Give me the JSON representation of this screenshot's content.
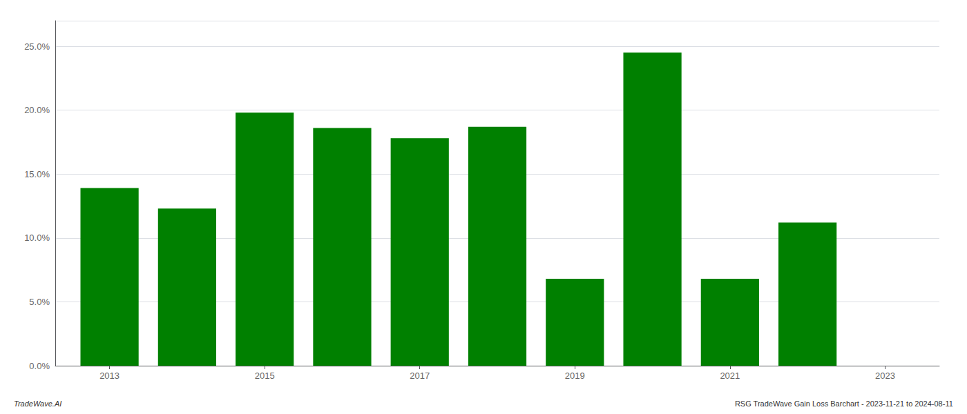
{
  "chart_data": {
    "type": "bar",
    "x": [
      2013,
      2014,
      2015,
      2016,
      2017,
      2018,
      2019,
      2020,
      2021,
      2022
    ],
    "values": [
      0.139,
      0.123,
      0.198,
      0.186,
      0.178,
      0.187,
      0.068,
      0.245,
      0.068,
      0.112
    ],
    "color": "#008000",
    "xlim": [
      2012.3,
      2023.7
    ],
    "xticks": [
      2013,
      2015,
      2017,
      2019,
      2021,
      2023
    ],
    "ylim": [
      0,
      0.27
    ],
    "yticks": [
      {
        "value": 0.0,
        "label": "0.0%"
      },
      {
        "value": 0.05,
        "label": "5.0%"
      },
      {
        "value": 0.1,
        "label": "10.0%"
      },
      {
        "value": 0.15,
        "label": "15.0%"
      },
      {
        "value": 0.2,
        "label": "20.0%"
      },
      {
        "value": 0.25,
        "label": "25.0%"
      }
    ],
    "grid": true,
    "annotations": [
      "TradeWave.AI",
      "RSG TradeWave Gain Loss Barchart - 2023-11-21 to 2024-08-11"
    ]
  }
}
